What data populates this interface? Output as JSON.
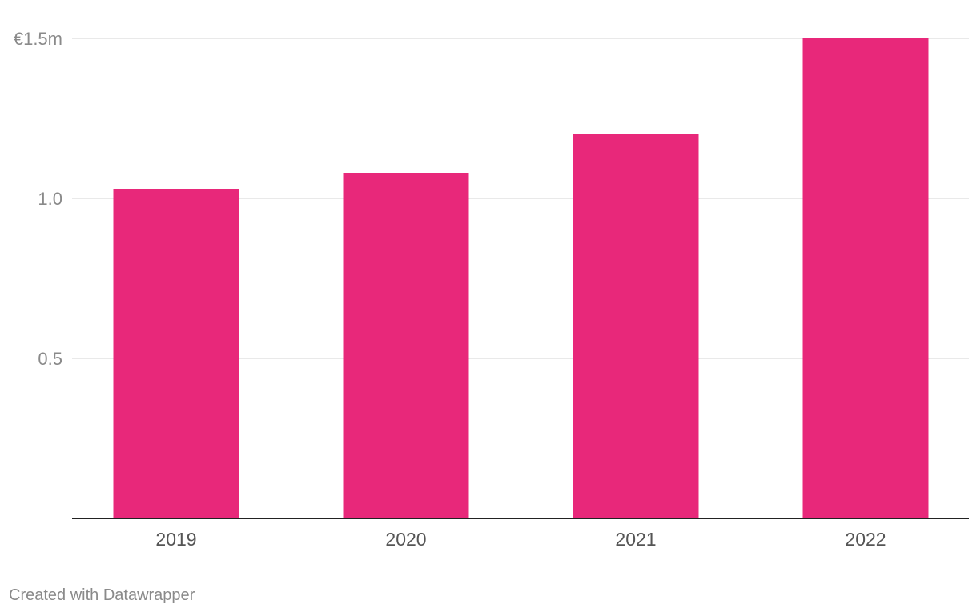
{
  "chart_data": {
    "type": "bar",
    "categories": [
      "2019",
      "2020",
      "2021",
      "2022"
    ],
    "values": [
      1.03,
      1.08,
      1.2,
      1.5
    ],
    "ylim": [
      0,
      1.5
    ],
    "yticks": [
      {
        "value": 0.5,
        "label": "0.5"
      },
      {
        "value": 1.0,
        "label": "1.0"
      },
      {
        "value": 1.5,
        "label": "€1.5m"
      }
    ],
    "grid": true,
    "bar_color": "#e8287a",
    "grid_color": "#e2e2e2",
    "baseline_color": "#222222"
  },
  "footer": {
    "credit": "Created with Datawrapper"
  }
}
